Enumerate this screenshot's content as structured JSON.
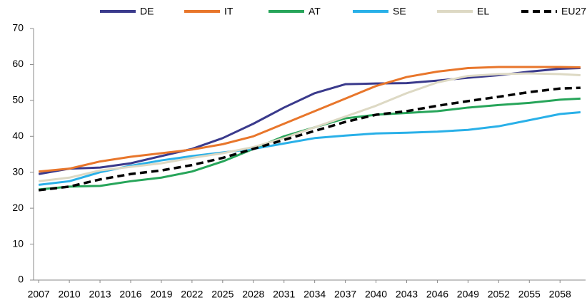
{
  "chart_data": {
    "type": "line",
    "x": [
      2007,
      2010,
      2013,
      2016,
      2019,
      2022,
      2025,
      2028,
      2031,
      2034,
      2037,
      2040,
      2043,
      2046,
      2049,
      2052,
      2055,
      2058,
      2060
    ],
    "xlim": [
      2006.5,
      2060.5
    ],
    "xticks": [
      2007,
      2010,
      2013,
      2016,
      2019,
      2022,
      2025,
      2028,
      2031,
      2034,
      2037,
      2040,
      2043,
      2046,
      2049,
      2052,
      2055,
      2058
    ],
    "ylim": [
      0,
      70
    ],
    "yticks": [
      0,
      10,
      20,
      30,
      40,
      50,
      60,
      70
    ],
    "grid": false,
    "legend": "top",
    "series": [
      {
        "name": "DE",
        "color": "#3a3a8c",
        "values": [
          29.5,
          31,
          31.3,
          32.5,
          34.5,
          36.5,
          39.5,
          43.5,
          48,
          52,
          54.5,
          54.7,
          54.8,
          55.5,
          56.3,
          57,
          58,
          58.8,
          59
        ]
      },
      {
        "name": "IT",
        "color": "#e8762b",
        "values": [
          30.2,
          31,
          33,
          34.3,
          35.3,
          36.3,
          37.8,
          40,
          43.5,
          47,
          50.5,
          54,
          56.5,
          58,
          59,
          59.3,
          59.3,
          59.3,
          59.2
        ]
      },
      {
        "name": "AT",
        "color": "#27a55a",
        "values": [
          25.2,
          26,
          26.2,
          27.5,
          28.5,
          30.2,
          33,
          36.5,
          40,
          42.5,
          45,
          46,
          46.5,
          47,
          48,
          48.7,
          49.3,
          50.2,
          50.5
        ]
      },
      {
        "name": "SE",
        "color": "#29b0e8",
        "values": [
          26.5,
          27.5,
          30,
          31.8,
          33.3,
          34.5,
          35.5,
          36.5,
          38,
          39.5,
          40.2,
          40.8,
          41,
          41.3,
          41.8,
          42.8,
          44.5,
          46.2,
          46.7
        ]
      },
      {
        "name": "EL",
        "color": "#ddd9c4",
        "values": [
          27.5,
          28.5,
          30.5,
          31.5,
          32.5,
          34,
          35.3,
          37,
          39.5,
          42.5,
          45.5,
          48.5,
          52,
          55,
          56.8,
          57.3,
          57.5,
          57.3,
          57
        ]
      },
      {
        "name": "EU27",
        "color": "#000000",
        "dashed": true,
        "values": [
          25,
          26,
          28,
          29.5,
          30.5,
          32,
          34,
          36.5,
          39,
          41.5,
          44,
          46,
          47,
          48.5,
          49.8,
          51,
          52.3,
          53.3,
          53.5
        ]
      }
    ]
  }
}
